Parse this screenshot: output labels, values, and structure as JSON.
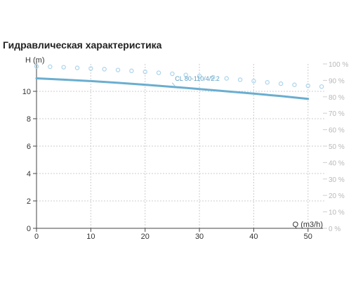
{
  "title": "Гидравлическая характеристика",
  "chart_data": {
    "type": "line",
    "xlabel": "Q (m3/h)",
    "ylabel": "H (m)",
    "xlim": [
      0,
      53
    ],
    "ylim": [
      0,
      12
    ],
    "y2lim": [
      0,
      100
    ],
    "x_ticks": [
      "0",
      "10",
      "20",
      "30",
      "40",
      "50"
    ],
    "x_tick_values": [
      0,
      10,
      20,
      30,
      40,
      50
    ],
    "y_ticks": [
      "0",
      "2",
      "4",
      "6",
      "8",
      "10"
    ],
    "y_tick_values": [
      0,
      2,
      4,
      6,
      8,
      10
    ],
    "y2_ticks": [
      "0 %",
      "10 %",
      "20 %",
      "30 %",
      "40 %",
      "50 %",
      "60 %",
      "70 %",
      "80 %",
      "90 %",
      "100 %"
    ],
    "y2_tick_values": [
      0,
      10,
      20,
      30,
      40,
      50,
      60,
      70,
      80,
      90,
      100
    ],
    "grid": true,
    "series": [
      {
        "name": "CL 80-110/4/2.2",
        "color": "#6aaed0",
        "x": [
          0,
          5,
          10,
          15,
          20,
          25,
          30,
          35,
          40,
          45,
          50
        ],
        "y": [
          10.95,
          10.85,
          10.75,
          10.62,
          10.48,
          10.33,
          10.17,
          10.0,
          9.83,
          9.65,
          9.45
        ]
      },
      {
        "color": "#aad4ec",
        "axis": "secondary",
        "x": [
          0,
          2.5,
          5,
          7.5,
          10,
          12.5,
          15,
          17.5,
          20,
          22.5,
          25,
          27.5,
          30,
          32.5,
          35,
          37.5,
          40,
          42.5,
          45,
          47.5,
          50,
          52.5
        ],
        "y": [
          98.5,
          98.3,
          98.0,
          97.6,
          97.2,
          96.8,
          96.3,
          95.8,
          95.2,
          94.6,
          94.0,
          93.3,
          92.6,
          91.9,
          91.2,
          90.4,
          89.6,
          88.8,
          88.0,
          87.3,
          86.7,
          86.2
        ]
      }
    ]
  }
}
